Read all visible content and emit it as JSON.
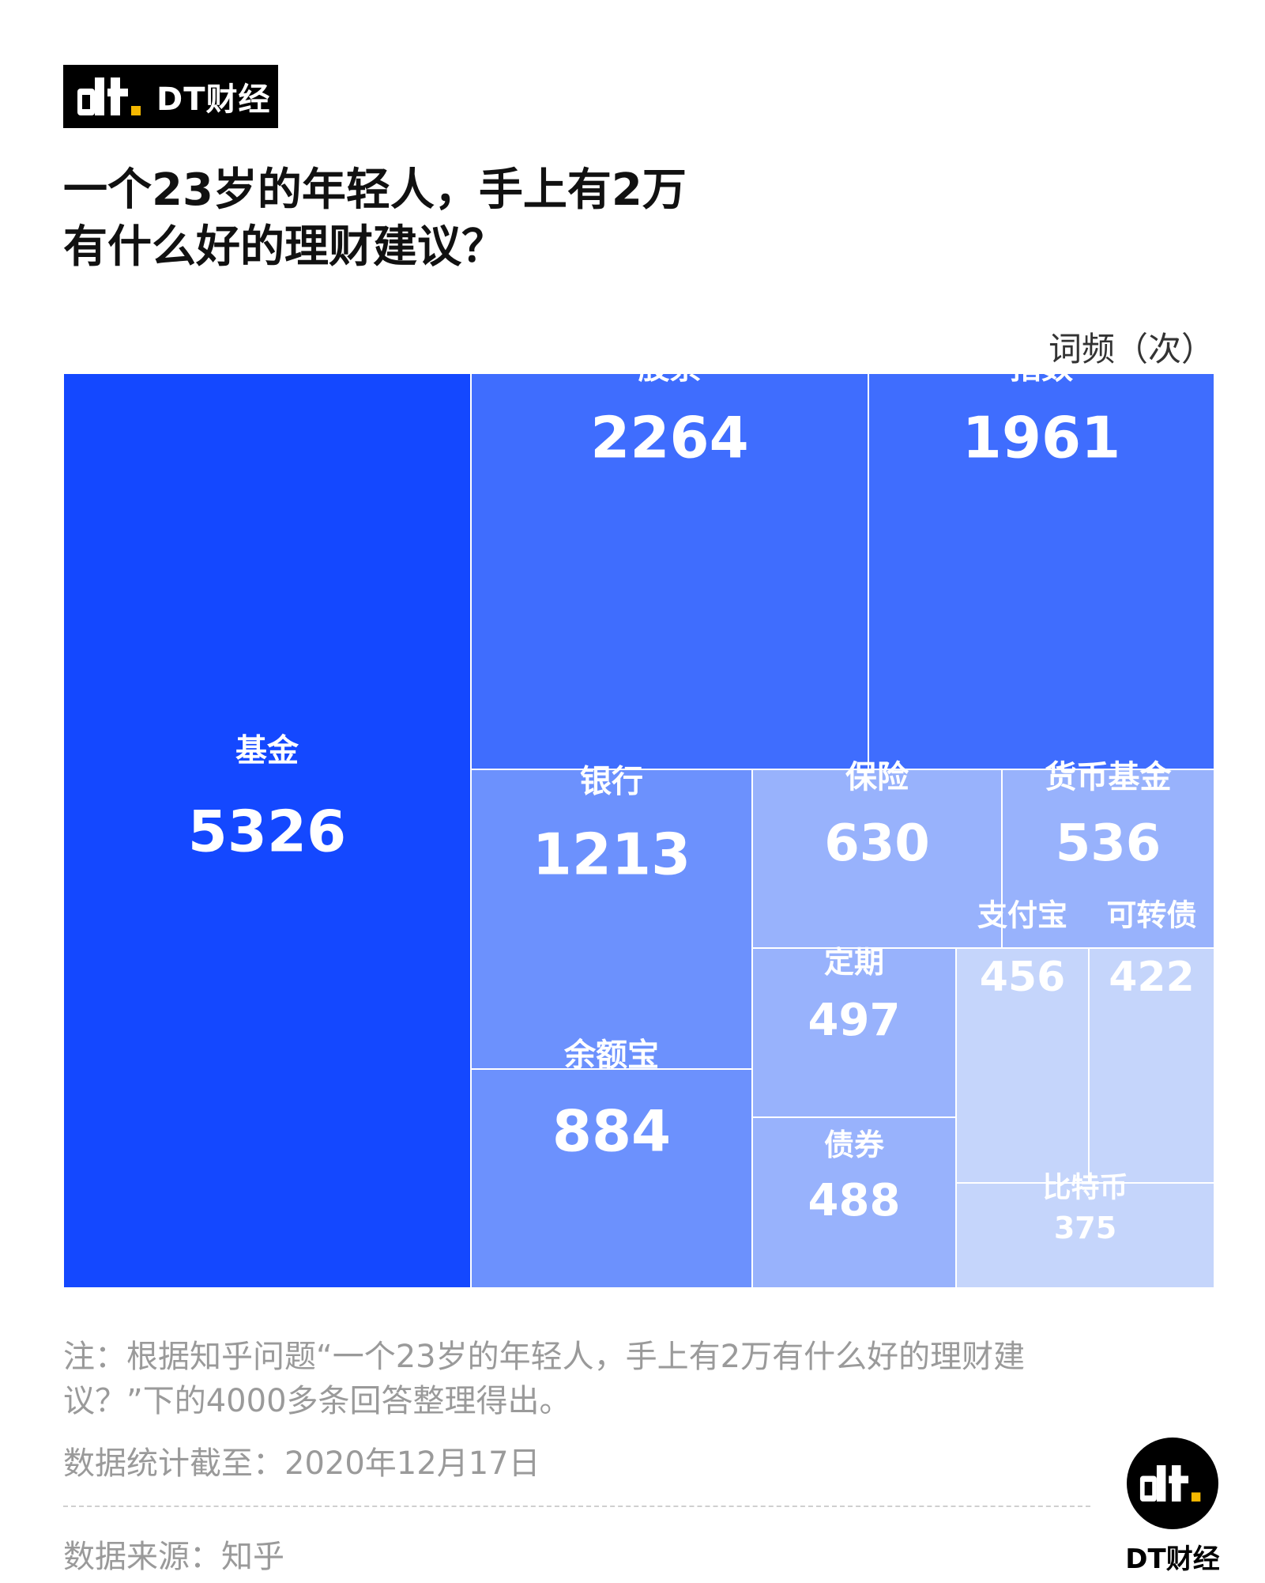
{
  "brand": {
    "name": "DT财经",
    "colors": {
      "primary": "#1448ff",
      "accent": "#f5b800",
      "badge_bg": "#000000"
    }
  },
  "title": {
    "line1": "一个23岁的年轻人，手上有2万",
    "line2": "有什么好的理财建议？"
  },
  "unit_label": "词频（次）",
  "chart_data": {
    "type": "treemap",
    "title": "一个23岁的年轻人，手上有2万有什么好的理财建议？",
    "unit": "词频（次）",
    "items": [
      {
        "label": "基金",
        "value": 5326,
        "color": "#1448ff"
      },
      {
        "label": "股票",
        "value": 2264,
        "color": "#3f6dfe"
      },
      {
        "label": "指数",
        "value": 1961,
        "color": "#3f6dfe"
      },
      {
        "label": "银行",
        "value": 1213,
        "color": "#6c91fd"
      },
      {
        "label": "余额宝",
        "value": 884,
        "color": "#6c91fd"
      },
      {
        "label": "保险",
        "value": 630,
        "color": "#98b2fc"
      },
      {
        "label": "货币基金",
        "value": 536,
        "color": "#98b2fc"
      },
      {
        "label": "定期",
        "value": 497,
        "color": "#98b2fc"
      },
      {
        "label": "债券",
        "value": 488,
        "color": "#98b2fc"
      },
      {
        "label": "支付宝",
        "value": 456,
        "color": "#c5d5fb"
      },
      {
        "label": "可转债",
        "value": 422,
        "color": "#c5d5fb"
      },
      {
        "label": "比特币",
        "value": 375,
        "color": "#c5d5fb"
      }
    ]
  },
  "note": "注：根据知乎问题“一个23岁的年轻人，手上有2万有什么好的理财建议？”下的4000多条回答整理得出。",
  "date": "数据统计截至：2020年12月17日",
  "source": "数据来源：知乎"
}
